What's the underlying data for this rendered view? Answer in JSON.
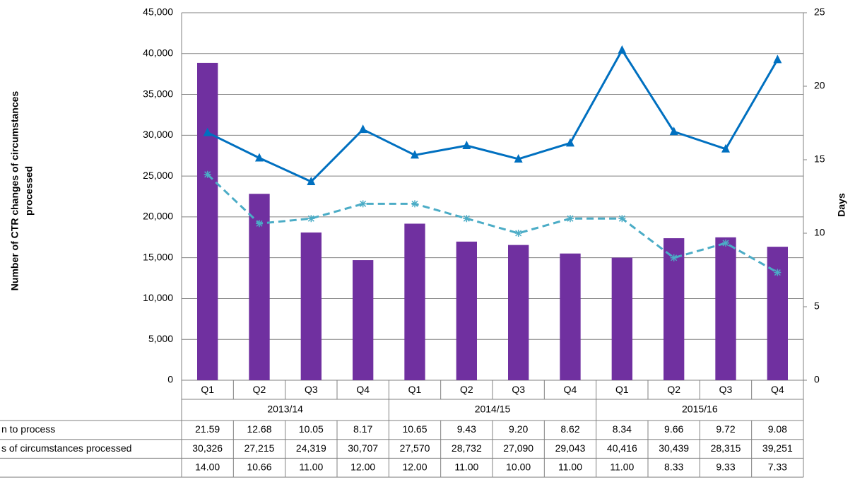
{
  "chart_data": {
    "type": "bar",
    "y_label": [
      "Number of CTR changes of circumstances",
      "processed"
    ],
    "y2_label": "Days",
    "categories": [
      "Q1",
      "Q2",
      "Q3",
      "Q4",
      "Q1",
      "Q2",
      "Q3",
      "Q4",
      "Q1",
      "Q2",
      "Q3",
      "Q4"
    ],
    "groups": [
      "2013/14",
      "2014/15",
      "2015/16"
    ],
    "ylim": [
      0,
      45000
    ],
    "yticks": [
      0,
      {
        "value": 5000,
        "label": "5,000"
      },
      {
        "value": 10000,
        "label": "10,000"
      },
      {
        "value": 15000,
        "label": "15,000"
      },
      {
        "value": 20000,
        "label": "20,000"
      },
      {
        "value": 25000,
        "label": "25,000"
      },
      {
        "value": 30000,
        "label": "30,000"
      },
      {
        "value": 35000,
        "label": "35,000"
      },
      {
        "value": 40000,
        "label": "40,000"
      },
      {
        "value": 45000,
        "label": "45,000"
      }
    ],
    "y2lim": [
      0,
      25
    ],
    "y2ticks": [
      0,
      5,
      10,
      15,
      20,
      25
    ],
    "grid": true,
    "series": [
      {
        "name": "n to process",
        "type": "bar",
        "axis": "y2",
        "color": "#7030a0",
        "values": [
          21.59,
          12.68,
          10.05,
          8.17,
          10.65,
          9.43,
          9.2,
          8.62,
          8.34,
          9.66,
          9.72,
          9.08
        ],
        "value_labels": [
          "21.59",
          "12.68",
          "10.05",
          "8.17",
          "10.65",
          "9.43",
          "9.20",
          "8.62",
          "8.34",
          "9.66",
          "9.72",
          "9.08"
        ]
      },
      {
        "name": "s of circumstances processed",
        "type": "line",
        "marker": "triangle",
        "color": "#0070c0",
        "values": [
          30326,
          27215,
          24319,
          30707,
          27570,
          28732,
          27090,
          29043,
          40416,
          30439,
          28315,
          39251
        ],
        "value_labels": [
          "30,326",
          "27,215",
          "24,319",
          "30,707",
          "27,570",
          "28,732",
          "27,090",
          "29,043",
          "40,416",
          "30,439",
          "28,315",
          "39,251"
        ]
      },
      {
        "name": null,
        "type": "line",
        "marker": "asterisk",
        "dashed": true,
        "axis": "y2",
        "color": "#4bacc6",
        "values": [
          14,
          10.66,
          11,
          12,
          12,
          11,
          10,
          11,
          11,
          8.33,
          9.33,
          7.33
        ],
        "value_labels": [
          "14.00",
          "10.66",
          "11.00",
          "12.00",
          "12.00",
          "11.00",
          "10.00",
          "11.00",
          "11.00",
          "8.33",
          "9.33",
          "7.33"
        ]
      }
    ]
  }
}
